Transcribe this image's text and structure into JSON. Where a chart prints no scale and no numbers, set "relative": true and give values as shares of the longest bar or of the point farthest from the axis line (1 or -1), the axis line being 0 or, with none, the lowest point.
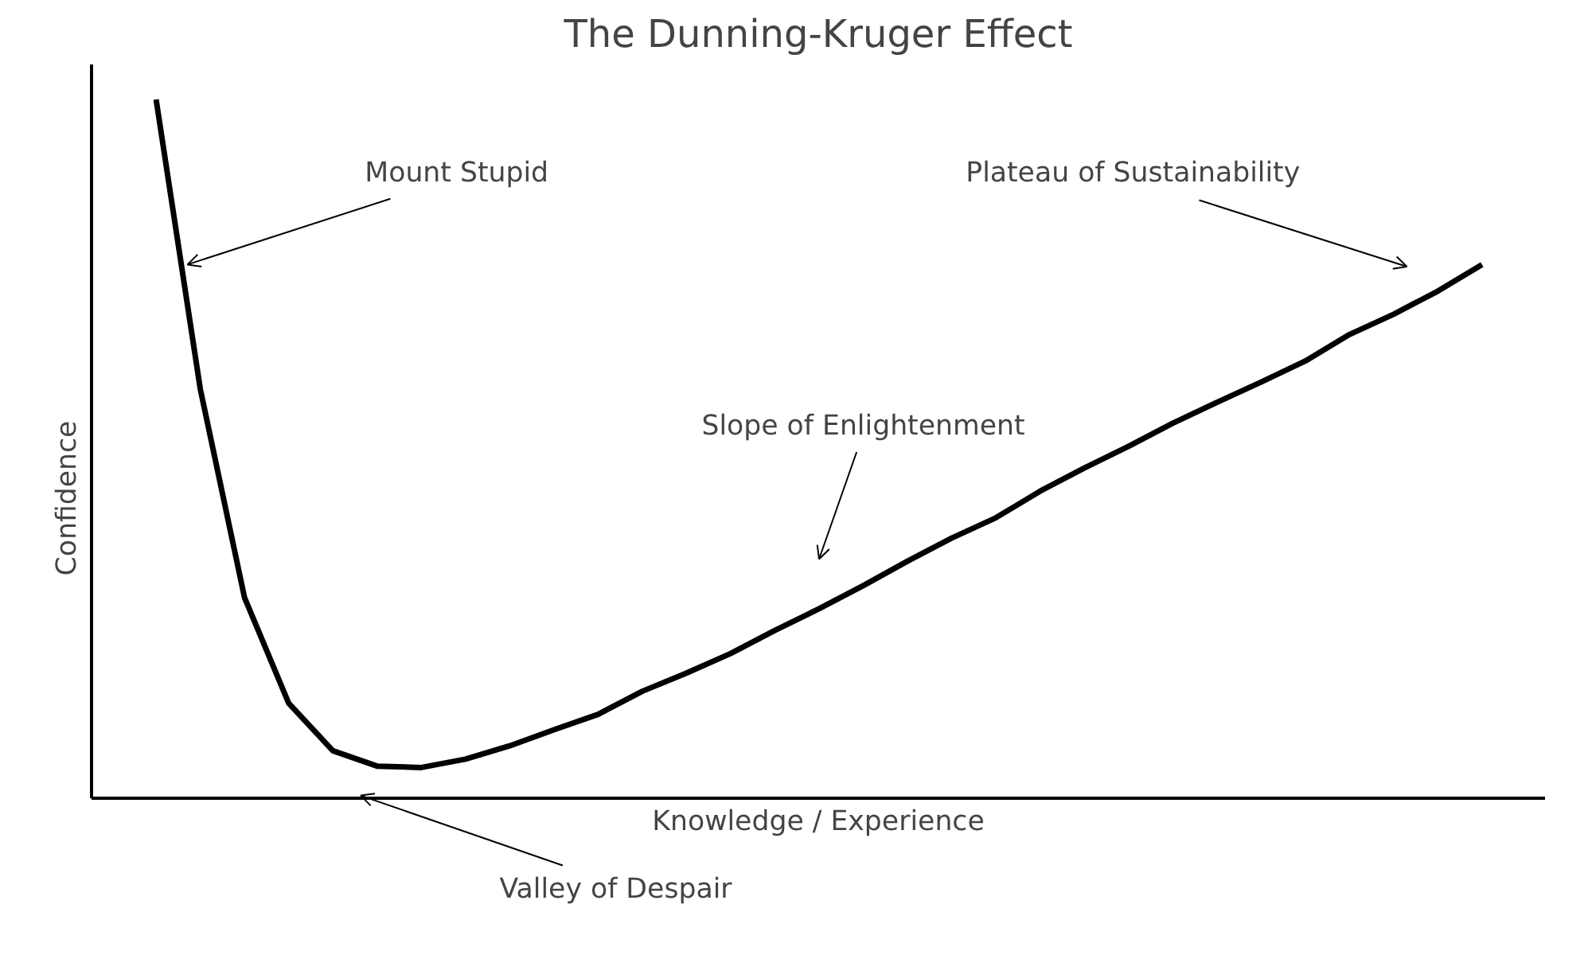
{
  "chart_data": {
    "type": "line",
    "title": "The Dunning-Kruger Effect",
    "xlabel": "Knowledge / Experience",
    "ylabel": "Confidence",
    "categories": [
      null,
      null,
      null,
      null,
      null,
      null,
      null,
      null,
      null,
      null,
      null,
      null,
      null,
      null,
      null,
      null,
      null,
      null,
      null,
      null,
      null,
      null,
      null,
      null,
      null,
      null,
      null,
      null,
      null,
      null,
      null
    ],
    "series": [
      {
        "color": "#000000",
        "values": [
          1.0,
          0.586,
          0.288,
          0.137,
          0.069,
          0.047,
          0.045,
          0.057,
          0.076,
          0.099,
          0.121,
          0.154,
          0.18,
          0.208,
          0.241,
          0.272,
          0.305,
          0.34,
          0.373,
          0.402,
          0.44,
          0.473,
          0.504,
          0.537,
          0.567,
          0.596,
          0.626,
          0.664,
          0.693,
          0.726,
          0.764
        ]
      }
    ],
    "annotations": [
      "Mount Stupid",
      "Plateau of Sustainability",
      "Slope of Enlightenment",
      "Valley of Despair"
    ],
    "relative": true
  }
}
